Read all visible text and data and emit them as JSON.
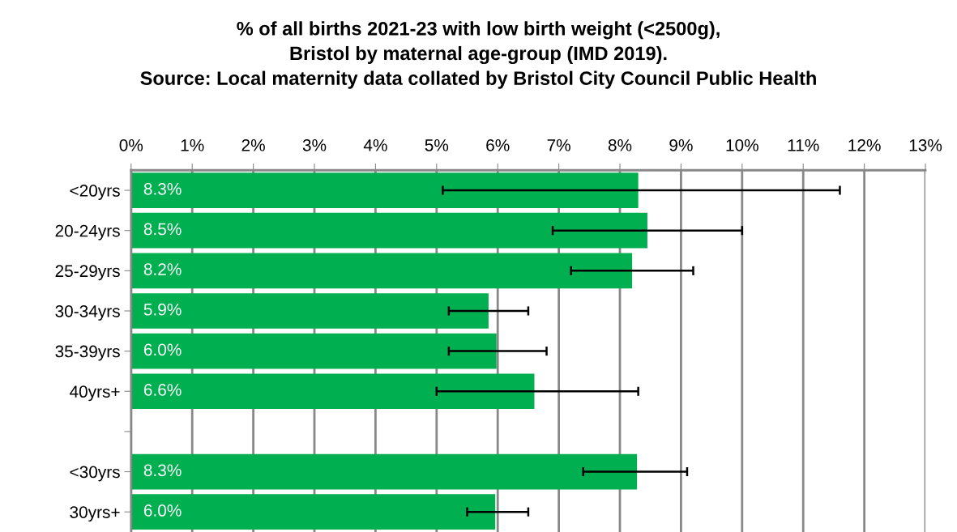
{
  "chart_data": {
    "type": "bar",
    "orientation": "horizontal",
    "title": "% of all births 2021-23 with low birth weight (<2500g),\nBristol by maternal age-group (IMD 2019).\nSource: Local maternity data collated by Bristol City Council Public Health",
    "categories": [
      "<20yrs",
      "20-24yrs",
      "25-29yrs",
      "30-34yrs",
      "35-39yrs",
      "40yrs+",
      null,
      "<30yrs",
      "30yrs+"
    ],
    "values": [
      8.3,
      8.45,
      8.2,
      5.85,
      5.98,
      6.6,
      null,
      8.28,
      5.96
    ],
    "value_labels": [
      "8.3%",
      "8.5%",
      "8.2%",
      "5.9%",
      "6.0%",
      "6.6%",
      null,
      "8.3%",
      "6.0%"
    ],
    "errors": [
      [
        5.1,
        11.6
      ],
      [
        6.9,
        10.0
      ],
      [
        7.2,
        9.2
      ],
      [
        5.2,
        6.5
      ],
      [
        5.2,
        6.8
      ],
      [
        5.0,
        8.3
      ],
      null,
      [
        7.4,
        9.1
      ],
      [
        5.5,
        6.5
      ]
    ],
    "color": "#00b050",
    "xlim": [
      0,
      13
    ],
    "xticks": [
      {
        "value": 0,
        "label": "0%"
      },
      {
        "value": 1,
        "label": "1%"
      },
      {
        "value": 2,
        "label": "2%"
      },
      {
        "value": 3,
        "label": "3%"
      },
      {
        "value": 4,
        "label": "4%"
      },
      {
        "value": 5,
        "label": "5%"
      },
      {
        "value": 6,
        "label": "6%"
      },
      {
        "value": 7,
        "label": "7%"
      },
      {
        "value": 8,
        "label": "8%"
      },
      {
        "value": 9,
        "label": "9%"
      },
      {
        "value": 10,
        "label": "10%"
      },
      {
        "value": 11,
        "label": "11%"
      },
      {
        "value": 12,
        "label": "12%"
      },
      {
        "value": 13,
        "label": "13%"
      }
    ],
    "grid": "x",
    "legend": false
  }
}
